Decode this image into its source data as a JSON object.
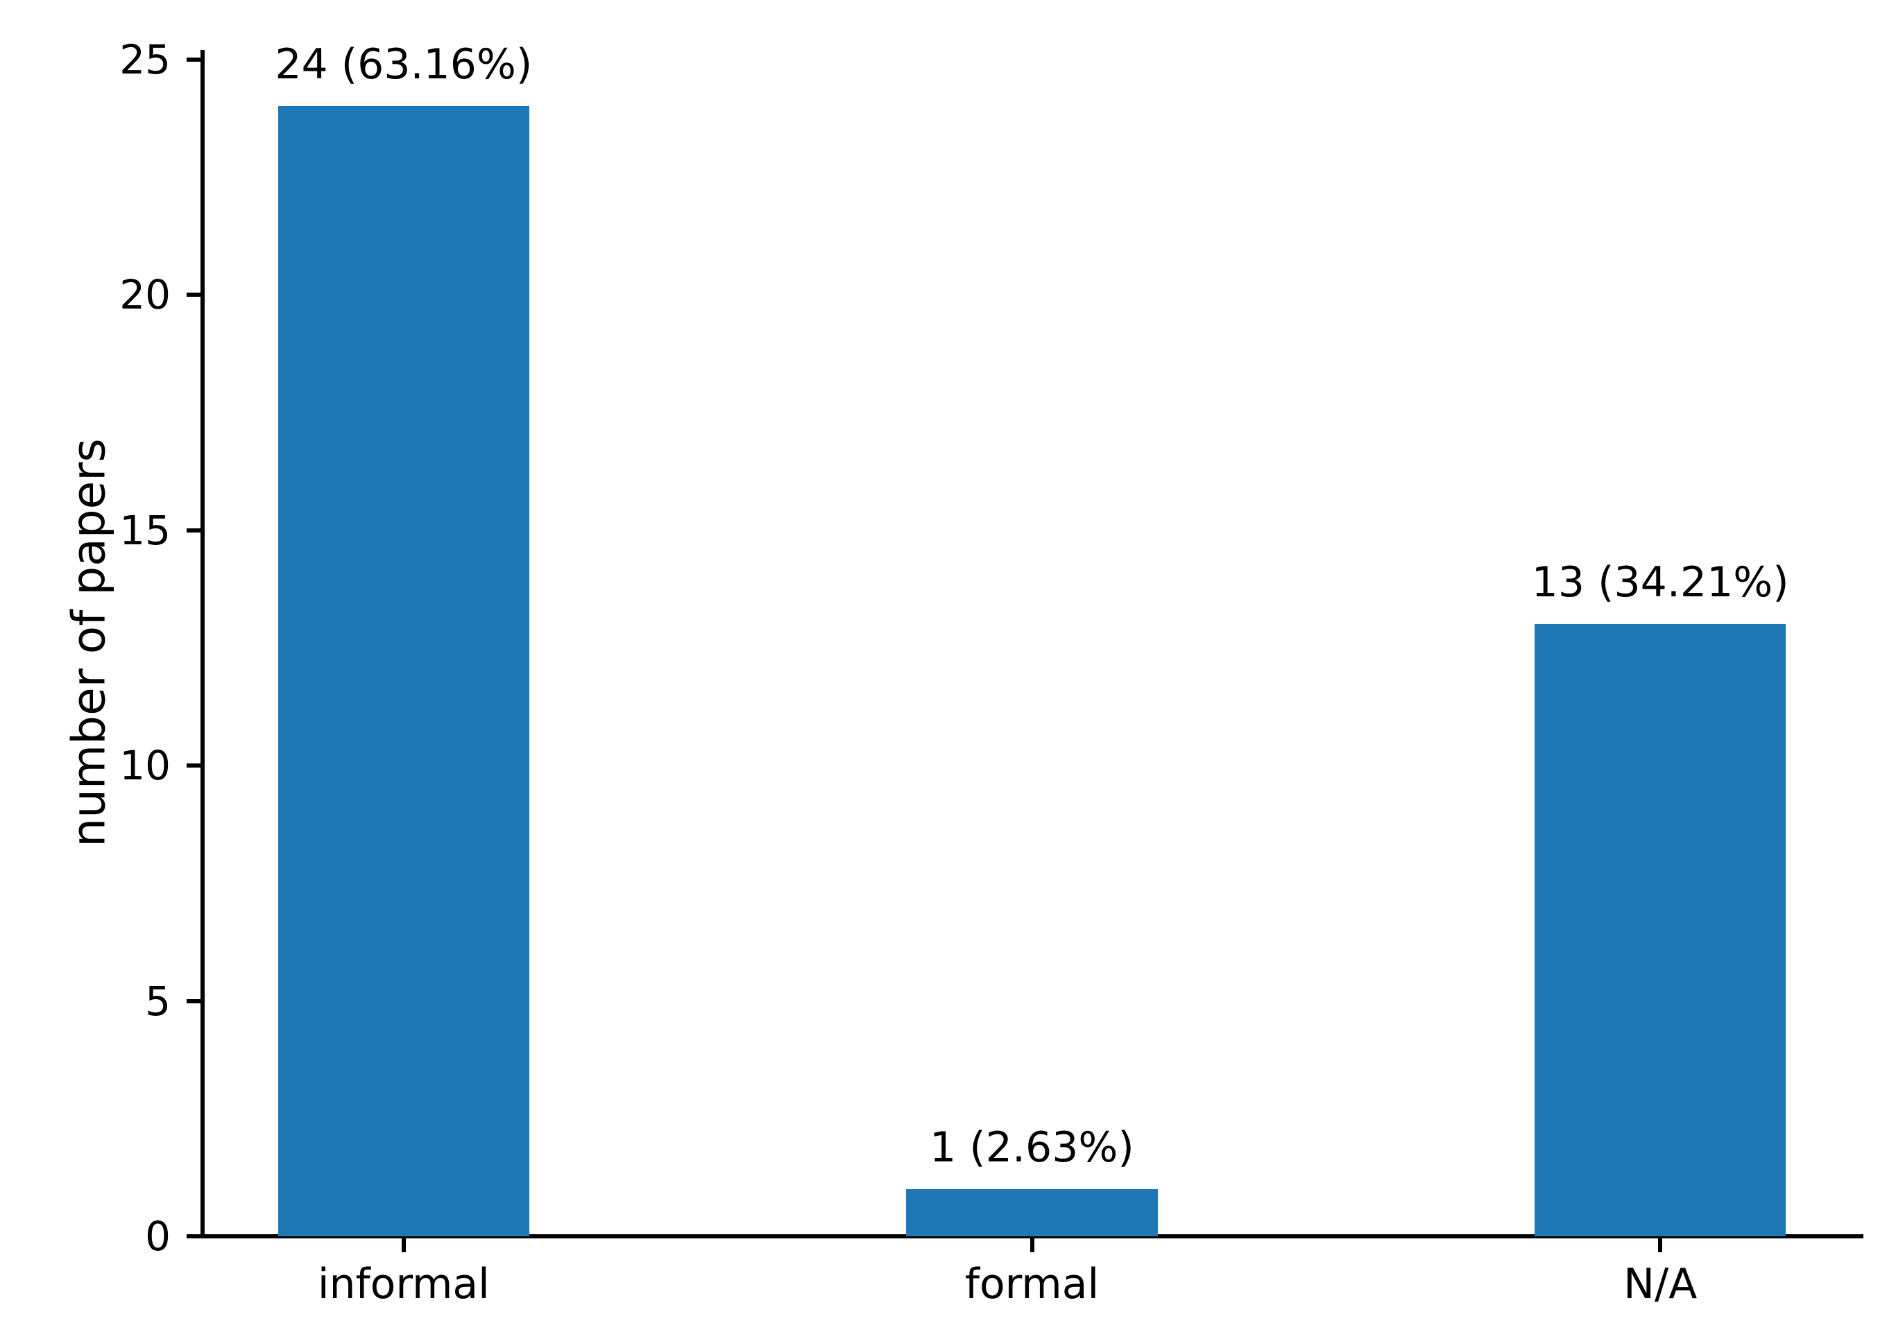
{
  "chart_data": {
    "type": "bar",
    "title": "",
    "categories": [
      "informal",
      "formal",
      "N/A"
    ],
    "values": [
      24,
      1,
      13
    ],
    "bar_labels": [
      "24 (63.16%)",
      "1 (2.63%)",
      "13 (34.21%)"
    ],
    "xlabel": "",
    "ylabel": "number of papers",
    "yticks": [
      0,
      5,
      10,
      15,
      20,
      25
    ],
    "ylim": [
      0,
      25.2
    ],
    "bar_width_fraction": 0.4,
    "bar_color": "#1f77b4",
    "axis_color": "#000000",
    "text_color": "#000000",
    "background_color": "#ffffff",
    "grid": false,
    "legend": false,
    "spines": [
      "left",
      "bottom"
    ]
  }
}
